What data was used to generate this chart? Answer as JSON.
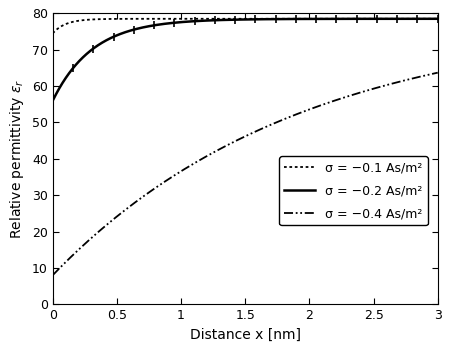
{
  "title": "",
  "xlabel": "Distance x [nm]",
  "ylabel": "Relative permittivity $\\varepsilon_r$",
  "xlim": [
    0,
    3
  ],
  "ylim": [
    0,
    80
  ],
  "yticks": [
    0,
    10,
    20,
    30,
    40,
    50,
    60,
    70,
    80
  ],
  "xticks": [
    0,
    0.5,
    1.0,
    1.5,
    2.0,
    2.5,
    3.0
  ],
  "eps_bulk": 78.5,
  "legend_labels": [
    "σ = −0.1 As/m²",
    "σ = −0.2 As/m²",
    "σ = −0.4 As/m²"
  ],
  "line_color": "black",
  "curve_params": [
    {
      "y0": 74.5,
      "k": 10.0
    },
    {
      "y0": 56.0,
      "k": 3.2
    },
    {
      "y0": 8.0,
      "k": 0.52
    }
  ],
  "figsize": [
    4.5,
    3.5
  ],
  "dpi": 100
}
